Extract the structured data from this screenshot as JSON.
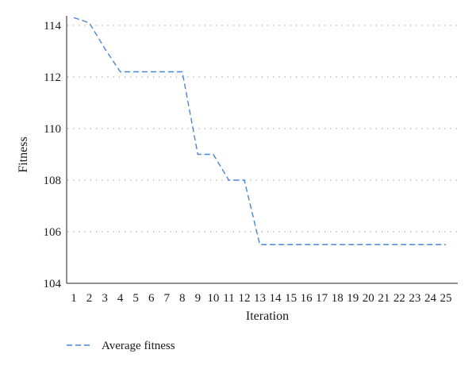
{
  "chart_data": {
    "type": "line",
    "xlabel": "Iteration",
    "ylabel": "Fitness",
    "x": [
      1,
      2,
      3,
      4,
      5,
      6,
      7,
      8,
      9,
      10,
      11,
      12,
      13,
      14,
      15,
      16,
      17,
      18,
      19,
      20,
      21,
      22,
      23,
      24,
      25
    ],
    "xlim": [
      1,
      25
    ],
    "ylim": [
      104,
      114
    ],
    "yticks": [
      104,
      106,
      108,
      110,
      112,
      114
    ],
    "grid": true,
    "legend_position": "bottom-left",
    "series": [
      {
        "name": "Average fitness",
        "color": "#4a86d8",
        "line_style": "dashed",
        "values": [
          114.3,
          114.1,
          113.1,
          112.2,
          112.2,
          112.2,
          112.2,
          112.2,
          109.0,
          109.0,
          108.0,
          108.0,
          105.5,
          105.5,
          105.5,
          105.5,
          105.5,
          105.5,
          105.5,
          105.5,
          105.5,
          105.5,
          105.5,
          105.5,
          105.5
        ]
      }
    ]
  }
}
